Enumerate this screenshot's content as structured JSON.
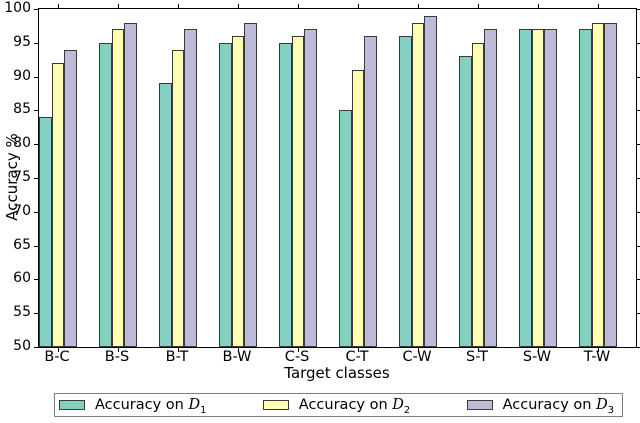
{
  "figure": {
    "ylabel": "Accuracy %",
    "xlabel": "Target classes"
  },
  "chart_data": {
    "type": "bar",
    "title": "",
    "xlabel": "Target classes",
    "ylabel": "Accuracy %",
    "ylim": [
      50,
      100
    ],
    "yticks": [
      50,
      55,
      60,
      65,
      70,
      75,
      80,
      85,
      90,
      95,
      100
    ],
    "grid": false,
    "legend_position": "bottom",
    "background_color": "#ffffff",
    "spine_color": "#000000",
    "bar_edge_color": "#3a3a3a",
    "categories": [
      "B-C",
      "B-S",
      "B-T",
      "B-W",
      "C-S",
      "C-T",
      "C-W",
      "S-T",
      "S-W",
      "T-W"
    ],
    "series": [
      {
        "name": "Accuracy on D1",
        "label_prefix": "Accuracy on ",
        "label_symbol": "D",
        "label_subscript": "1",
        "color": "#85d0c0",
        "values": [
          84,
          95,
          89,
          95,
          95,
          85,
          96,
          93,
          97,
          97
        ]
      },
      {
        "name": "Accuracy on D2",
        "label_prefix": "Accuracy on ",
        "label_symbol": "D",
        "label_subscript": "2",
        "color": "#ffffb3",
        "values": [
          92,
          97,
          94,
          96,
          96,
          91,
          98,
          95,
          97,
          98
        ]
      },
      {
        "name": "Accuracy on D3",
        "label_prefix": "Accuracy on ",
        "label_symbol": "D",
        "label_subscript": "3",
        "color": "#bebada",
        "values": [
          94,
          98,
          97,
          98,
          97,
          96,
          99,
          97,
          97,
          98
        ]
      }
    ]
  }
}
